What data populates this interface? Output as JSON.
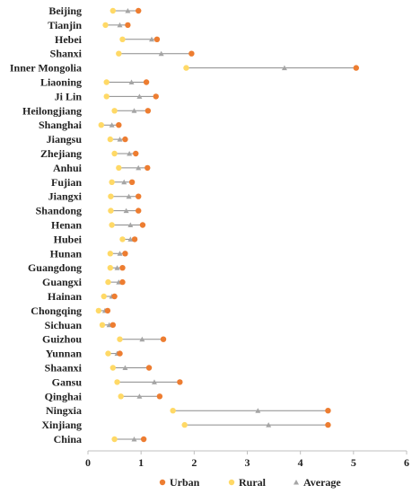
{
  "chart_data": {
    "type": "dumbbell",
    "xlim": [
      0,
      6
    ],
    "x_ticks": [
      "0",
      "1",
      "2",
      "3",
      "4",
      "5",
      "6"
    ],
    "grid": false,
    "legend_position": "bottom",
    "categories": [
      "Beijing",
      "Tianjin",
      "Hebei",
      "Shanxi",
      "Inner Mongolia",
      "Liaoning",
      "Ji Lin",
      "Heilongjiang",
      "Shanghai",
      "Jiangsu",
      "Zhejiang",
      "Anhui",
      "Fujian",
      "Jiangxi",
      "Shandong",
      "Henan",
      "Hubei",
      "Hunan",
      "Guangdong",
      "Guangxi",
      "Hainan",
      "Chongqing",
      "Sichuan",
      "Guizhou",
      "Yunnan",
      "Shaanxi",
      "Gansu",
      "Qinghai",
      "Ningxia",
      "Xinjiang",
      "China"
    ],
    "series": [
      {
        "name": "Urban",
        "color": "#ED7D31",
        "marker": "circle",
        "values": [
          0.95,
          0.75,
          1.3,
          1.95,
          5.05,
          1.1,
          1.28,
          1.13,
          0.58,
          0.7,
          0.9,
          1.12,
          0.83,
          0.95,
          0.95,
          1.03,
          0.88,
          0.7,
          0.65,
          0.65,
          0.5,
          0.37,
          0.47,
          1.42,
          0.6,
          1.15,
          1.73,
          1.35,
          4.52,
          4.52,
          1.05
        ]
      },
      {
        "name": "Rural",
        "color": "#FFD966",
        "marker": "circle",
        "values": [
          0.47,
          0.33,
          0.65,
          0.58,
          1.85,
          0.35,
          0.35,
          0.5,
          0.25,
          0.42,
          0.5,
          0.58,
          0.45,
          0.43,
          0.43,
          0.45,
          0.65,
          0.42,
          0.42,
          0.38,
          0.3,
          0.2,
          0.27,
          0.6,
          0.38,
          0.47,
          0.55,
          0.62,
          1.6,
          1.82,
          0.5
        ]
      },
      {
        "name": "Average",
        "color": "#A5A5A5",
        "marker": "triangle",
        "values": [
          0.75,
          0.6,
          1.2,
          1.38,
          3.7,
          0.82,
          0.97,
          0.87,
          0.45,
          0.6,
          0.78,
          0.95,
          0.68,
          0.77,
          0.72,
          0.8,
          0.8,
          0.6,
          0.55,
          0.58,
          0.45,
          0.32,
          0.4,
          1.02,
          0.55,
          0.7,
          1.25,
          0.97,
          3.2,
          3.4,
          0.87
        ]
      }
    ]
  }
}
